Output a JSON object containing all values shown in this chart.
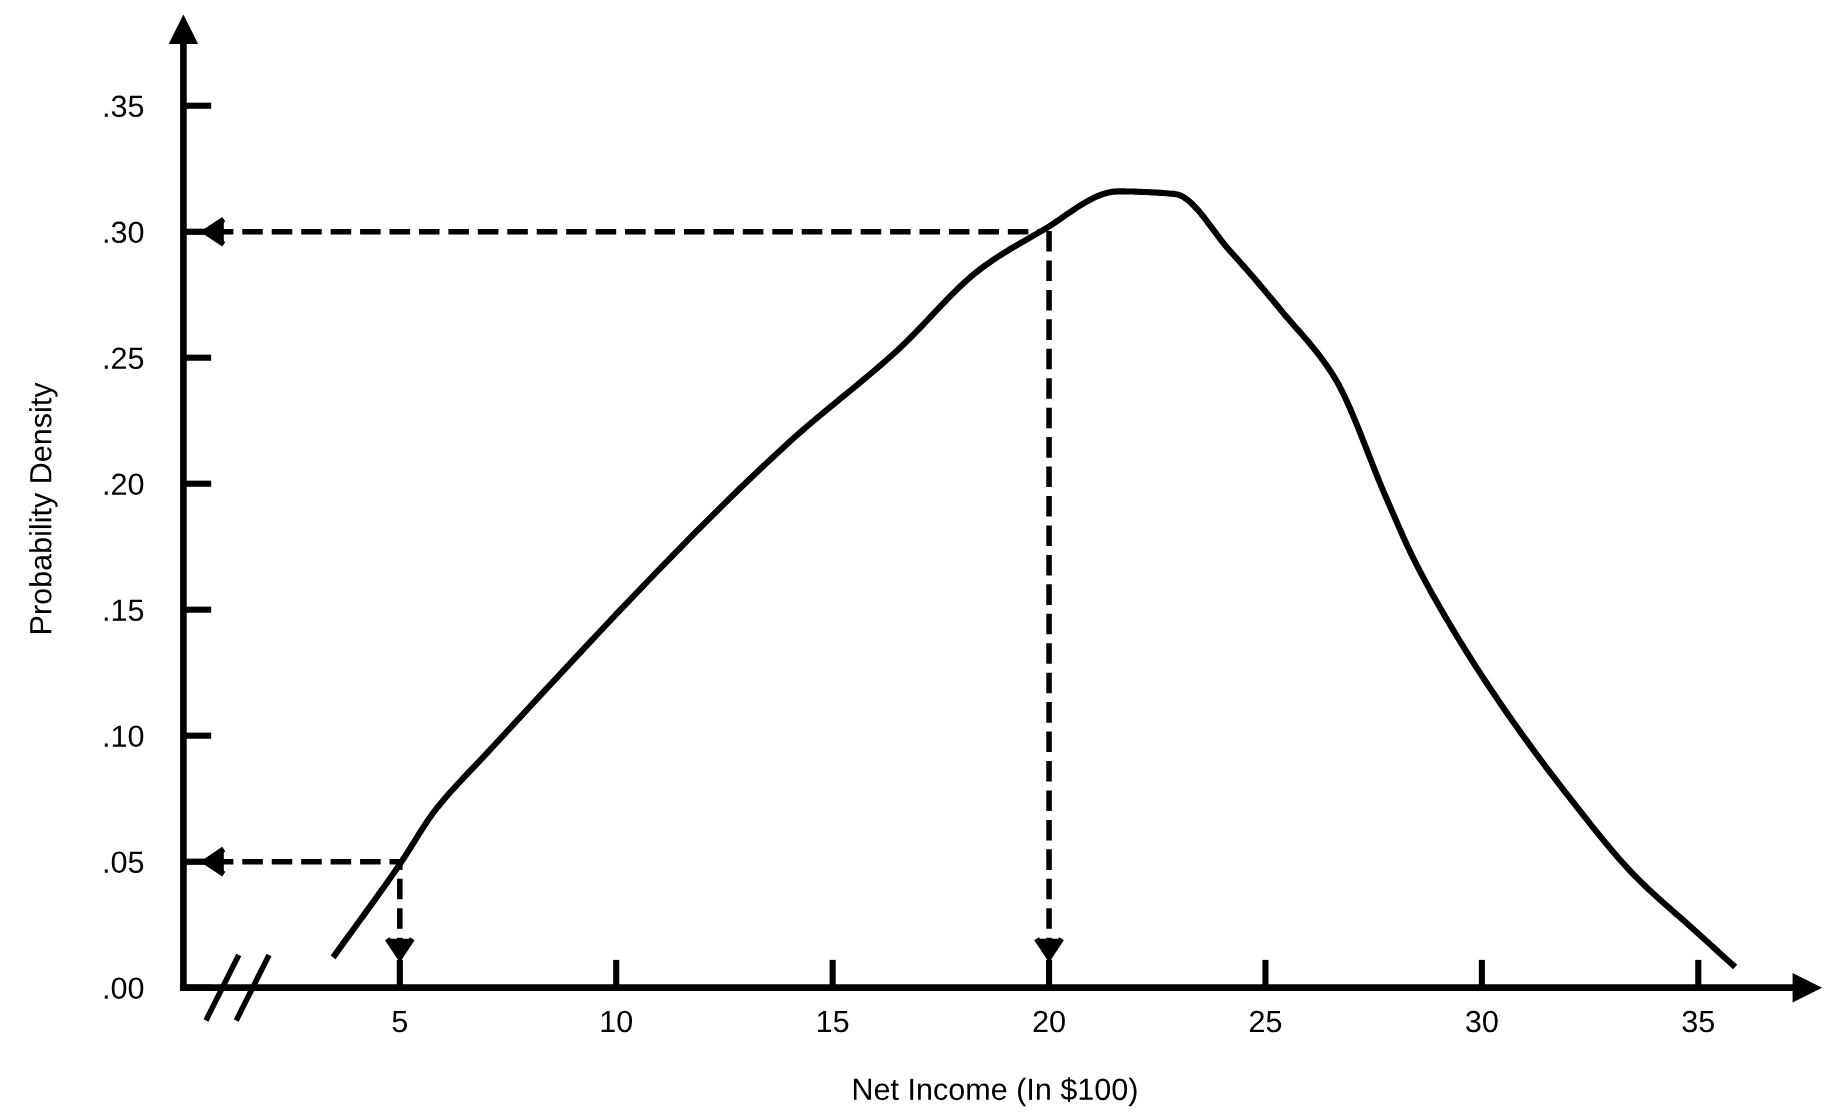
{
  "chart_data": {
    "type": "line",
    "xlabel": "Net Income (In $100)",
    "ylabel": "Probability Density",
    "xlim": [
      0,
      37.5
    ],
    "ylim": [
      0,
      0.38
    ],
    "xticks": [
      5,
      10,
      15,
      20,
      25,
      30,
      35
    ],
    "yticks": [
      {
        "value": 0,
        "label": ".00"
      },
      {
        "value": 0.05,
        "label": ".05"
      },
      {
        "value": 0.1,
        "label": ".10"
      },
      {
        "value": 0.15,
        "label": ".15"
      },
      {
        "value": 0.2,
        "label": ".20"
      },
      {
        "value": 0.25,
        "label": ".25"
      },
      {
        "value": 0.3,
        "label": ".30"
      },
      {
        "value": 0.35,
        "label": ".35"
      }
    ],
    "grid": false,
    "legend": false,
    "marker": "none",
    "line_style": "solid",
    "series": [
      {
        "color": "#000000",
        "x": [
          3.5,
          5.0,
          5.8,
          6.9,
          13.9,
          16.5,
          18.4,
          19.8,
          21.6,
          22.9,
          24.2,
          25.4,
          26.6,
          27.8,
          28.4,
          29.3,
          30.5,
          32.0,
          33.5,
          34.9,
          35.8
        ],
        "values": [
          0.013,
          0.049,
          0.07,
          0.091,
          0.215,
          0.253,
          0.285,
          0.3,
          0.316,
          0.315,
          0.292,
          0.268,
          0.242,
          0.194,
          0.171,
          0.143,
          0.111,
          0.076,
          0.045,
          0.023,
          0.009
        ]
      }
    ],
    "ref_lines": [
      {
        "axis": "y",
        "value": 0.05,
        "color": "#000000",
        "line_style": "dashed"
      },
      {
        "axis": "x",
        "value": 5,
        "color": "#000000",
        "line_style": "dashed"
      },
      {
        "axis": "y",
        "value": 0.3,
        "color": "#000000",
        "line_style": "dashed"
      },
      {
        "axis": "x",
        "value": 20,
        "color": "#000000",
        "line_style": "dashed"
      }
    ]
  }
}
